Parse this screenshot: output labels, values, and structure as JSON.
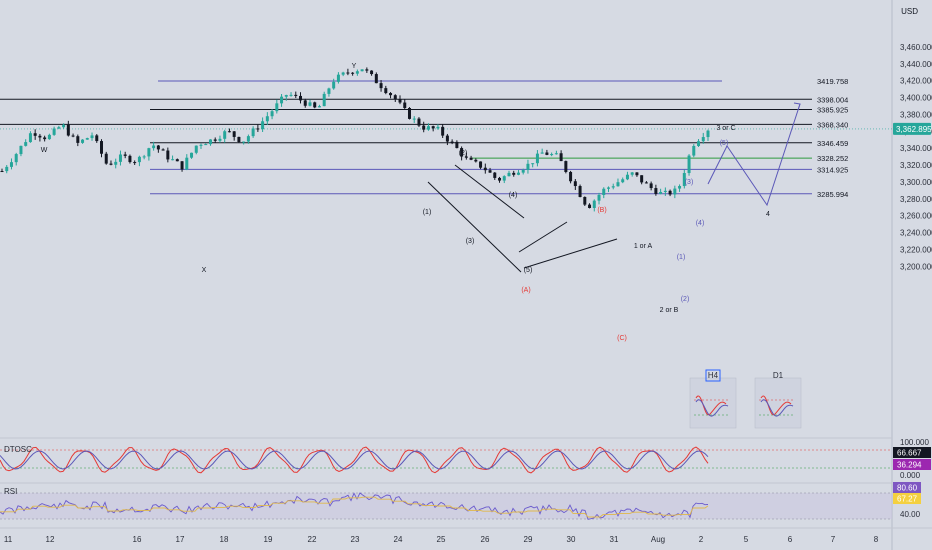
{
  "currency": "USD",
  "chart_data": [
    {
      "type": "line",
      "panel": "price",
      "ohlc_close_approx": [
        3313,
        3335,
        3360,
        3352,
        3368,
        3345,
        3356,
        3320,
        3330,
        3325,
        3345,
        3330,
        3318,
        3345,
        3350,
        3360,
        3348,
        3365,
        3385,
        3405,
        3396,
        3385,
        3420,
        3430,
        3435,
        3418,
        3402,
        3380,
        3365,
        3362,
        3345,
        3325,
        3318,
        3302,
        3312,
        3320,
        3335,
        3330,
        3300,
        3270,
        3290,
        3300,
        3310,
        3295,
        3285,
        3290,
        3345,
        3362.895
      ],
      "ylim": [
        3190,
        3470
      ],
      "y_ticks": [
        "3,460.000",
        "3,440.000",
        "3,420.000",
        "3,400.000",
        "3,380.000",
        "3,360.000",
        "3,340.000",
        "3,320.000",
        "3,300.000",
        "3,280.000",
        "3,260.000",
        "3,240.000",
        "3,220.000",
        "3,200.000"
      ],
      "x_ticks": [
        "11",
        "12",
        "16",
        "17",
        "18",
        "19",
        "22",
        "23",
        "24",
        "25",
        "26",
        "29",
        "30",
        "31",
        "Aug",
        "2",
        "5",
        "6",
        "7",
        "8"
      ],
      "last_price": "3,362.895",
      "levels": [
        {
          "label": "3419.758",
          "value": 3419.758,
          "color": "#5b58b8"
        },
        {
          "label": "3398.004",
          "value": 3398.004,
          "color": "#131722"
        },
        {
          "label": "3385.925",
          "value": 3385.925,
          "color": "#131722"
        },
        {
          "label": "3368.340",
          "value": 3368.34,
          "color": "#131722"
        },
        {
          "label": "3346.459",
          "value": 3346.459,
          "color": "#131722"
        },
        {
          "label": "3328.252",
          "value": 3328.252,
          "color": "#2e9b3e"
        },
        {
          "label": "3314.925",
          "value": 3314.925,
          "color": "#5b58b8"
        },
        {
          "label": "3285.994",
          "value": 3285.994,
          "color": "#5b58b8",
          "text_color": "#2962ff"
        }
      ],
      "wave_labels": [
        {
          "text": "W",
          "color": "#131722"
        },
        {
          "text": "X",
          "color": "#131722"
        },
        {
          "text": "Y",
          "color": "#131722"
        },
        {
          "text": "(1)",
          "color": "#131722"
        },
        {
          "text": "(2)",
          "color": "#131722"
        },
        {
          "text": "(3)",
          "color": "#131722"
        },
        {
          "text": "(4)",
          "color": "#131722"
        },
        {
          "text": "(5)",
          "color": "#131722"
        },
        {
          "text": "(A)",
          "color": "#e53935"
        },
        {
          "text": "(B)",
          "color": "#e53935"
        },
        {
          "text": "(C)",
          "color": "#e53935"
        },
        {
          "text": "1 or A",
          "color": "#131722"
        },
        {
          "text": "2 or B",
          "color": "#131722"
        },
        {
          "text": "(1)",
          "color": "#5b58b8"
        },
        {
          "text": "(2)",
          "color": "#5b58b8"
        },
        {
          "text": "(3)",
          "color": "#5b58b8"
        },
        {
          "text": "(4)",
          "color": "#5b58b8"
        },
        {
          "text": "(5)",
          "color": "#5b58b8"
        },
        {
          "text": "3 or C",
          "color": "#131722"
        },
        {
          "text": "4",
          "color": "#131722"
        }
      ],
      "timeframe_labels": [
        "H4",
        "D1"
      ]
    },
    {
      "type": "line",
      "panel": "stochastic",
      "title": "DTOSC",
      "y_ticks": [
        "100.000",
        "0.000"
      ],
      "values_shown": [
        "66.667",
        "36.294"
      ]
    },
    {
      "type": "line",
      "panel": "rsi",
      "title": "RSI",
      "y_ticks": [
        "40.00"
      ],
      "values_shown": [
        "80.60",
        "67.27"
      ]
    }
  ]
}
